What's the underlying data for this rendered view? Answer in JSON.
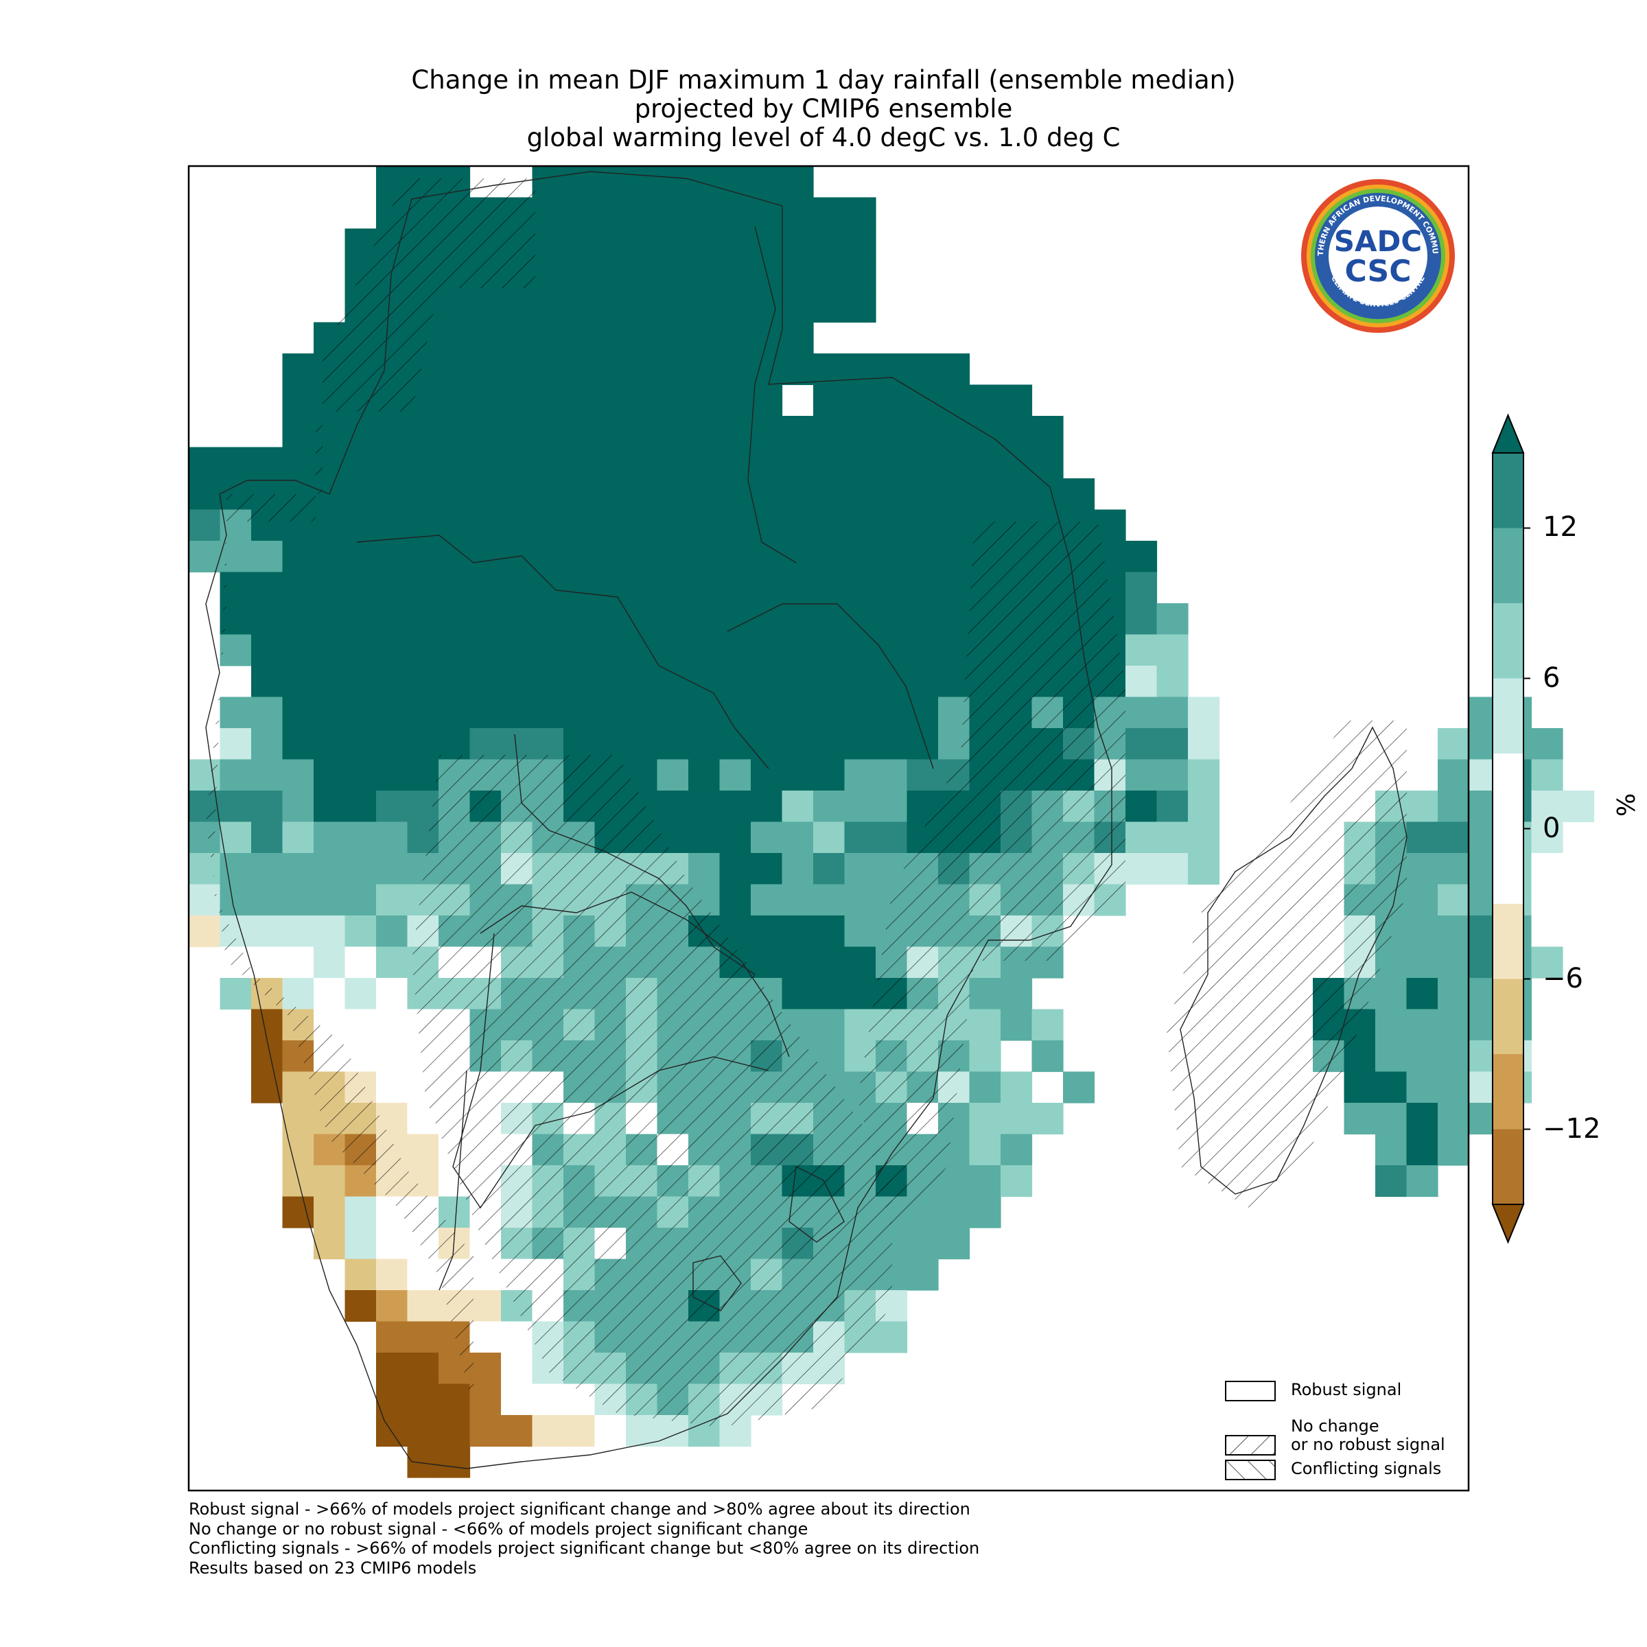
{
  "title_lines": [
    "Change in mean DJF maximum 1 day rainfall (ensemble median)",
    "projected by CMIP6 ensemble",
    "global warming level of 4.0 degC vs. 1.0 deg C"
  ],
  "colorbar": {
    "unit_label": "%",
    "ticks": [
      "12",
      "6",
      "0",
      "−6",
      "−12"
    ],
    "tick_values": [
      12,
      6,
      0,
      -6,
      -12
    ],
    "range": [
      -15,
      15
    ],
    "extend": "both",
    "colors": [
      "#8c510a",
      "#b1762c",
      "#cf9d52",
      "#dfc584",
      "#f3e4c1",
      "#ffffff",
      "#ffffff",
      "#c7eae5",
      "#90d1c5",
      "#5aada2",
      "#2a8880",
      "#01665e"
    ]
  },
  "legend": {
    "items": [
      {
        "label": "Robust signal",
        "pattern": "none"
      },
      {
        "label_lines": [
          "No change",
          "or no robust signal"
        ],
        "pattern": "forward-hatch"
      },
      {
        "label": "Conflicting signals",
        "pattern": "back-hatch"
      }
    ]
  },
  "footnotes": [
    "Robust signal - >66% of models project significant change and >80% agree about its direction",
    "No change or no robust signal - <66% of models project significant change",
    "Conflicting signals - >66% of models project significant change but <80% agree on its direction",
    "Results based on 23 CMIP6 models"
  ],
  "logo": {
    "top_text": "SOUTHERN AFRICAN DEVELOPMENT COMMUNITY",
    "bottom_text": "CLIMATE SERVICES CENTRE",
    "center_lines": [
      "SADC",
      "CSC"
    ],
    "icon": "sadc-csc-logo"
  },
  "map": {
    "region": "Southern Africa and Madagascar",
    "hatching_present": true
  }
}
